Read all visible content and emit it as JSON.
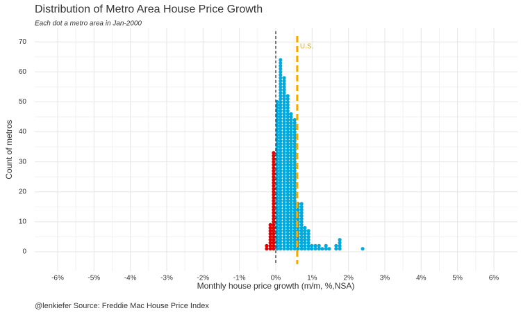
{
  "chart_data": {
    "type": "dotplot",
    "title": "Distribution of Metro Area House Price Growth",
    "subtitle": "Each dot a metro area in Jan-2000",
    "x_label": "Monthly house price growth (m/m, %,NSA)",
    "y_label": "Count of metros",
    "caption": "@lenkiefer Source: Freddie Mac House Price Index",
    "x": [
      -0.25,
      -0.15,
      -0.06,
      0.04,
      0.13,
      0.23,
      0.33,
      0.42,
      0.52,
      0.61,
      0.71,
      0.8,
      0.9,
      0.99,
      1.09,
      1.19,
      1.28,
      1.38,
      1.47,
      1.66,
      1.76,
      2.39
    ],
    "values": [
      2,
      9,
      33,
      50,
      64,
      58,
      52,
      46,
      44,
      16,
      16,
      8,
      7,
      2,
      2,
      2,
      1,
      2,
      1,
      2,
      4,
      1
    ],
    "color_negative": "#e00000",
    "color_positive": "#00aadd",
    "zero_line": 0,
    "reference": {
      "label": "U.S.",
      "value": 0.59,
      "color": "#f5a800"
    },
    "xlim": [
      -6.63,
      6.65
    ],
    "ylim": [
      -6.5,
      74.7
    ],
    "xticks": [
      {
        "value": -6,
        "label": "-6%"
      },
      {
        "value": -5,
        "label": "-5%"
      },
      {
        "value": -4,
        "label": "-4%"
      },
      {
        "value": -3,
        "label": "-3%"
      },
      {
        "value": -2,
        "label": "-2%"
      },
      {
        "value": -1,
        "label": "-1%"
      },
      {
        "value": 0,
        "label": "0%"
      },
      {
        "value": 1,
        "label": "1%"
      },
      {
        "value": 2,
        "label": "2%"
      },
      {
        "value": 3,
        "label": "3%"
      },
      {
        "value": 4,
        "label": "4%"
      },
      {
        "value": 5,
        "label": "5%"
      },
      {
        "value": 6,
        "label": "6%"
      }
    ],
    "yticks": [
      0,
      10,
      20,
      30,
      40,
      50,
      60,
      70
    ],
    "grid": true
  }
}
